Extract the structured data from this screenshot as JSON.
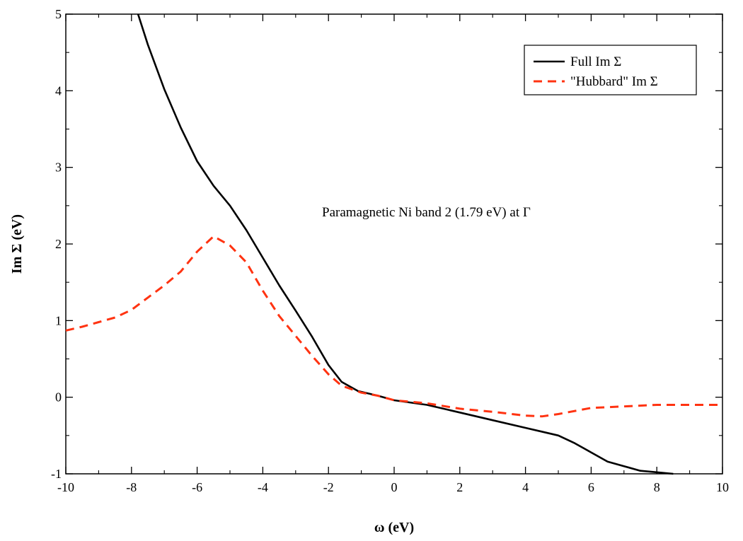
{
  "chart_data": {
    "type": "line",
    "title": "",
    "xlabel": "ω (eV)",
    "ylabel": "Im Σ (eV)",
    "xlim": [
      -10,
      10
    ],
    "ylim": [
      -1,
      5
    ],
    "xticks": [
      -10,
      -8,
      -6,
      -4,
      -2,
      0,
      2,
      4,
      6,
      8,
      10
    ],
    "yticks": [
      -1,
      0,
      1,
      2,
      3,
      4,
      5
    ],
    "grid": false,
    "legend_position": "top-right",
    "annotation": "Paramagnetic Ni band 2 (1.79 eV) at Γ",
    "series": [
      {
        "name": "Full Im Σ",
        "color": "#000000",
        "style": "solid",
        "x": [
          -7.8,
          -7.5,
          -7.0,
          -6.5,
          -6.0,
          -5.5,
          -5.0,
          -4.5,
          -4.0,
          -3.5,
          -3.0,
          -2.5,
          -2.0,
          -1.6,
          -1.1,
          -0.5,
          0.0,
          1.0,
          2.0,
          3.0,
          4.0,
          5.0,
          5.5,
          6.0,
          6.5,
          7.0,
          7.5,
          8.0,
          8.5
        ],
        "y": [
          5.0,
          4.6,
          4.02,
          3.52,
          3.08,
          2.76,
          2.5,
          2.18,
          1.82,
          1.46,
          1.13,
          0.79,
          0.42,
          0.2,
          0.08,
          0.02,
          -0.04,
          -0.1,
          -0.2,
          -0.3,
          -0.4,
          -0.5,
          -0.6,
          -0.72,
          -0.84,
          -0.9,
          -0.96,
          -0.98,
          -1.0
        ]
      },
      {
        "name": "\"Hubbard\" Im Σ",
        "color": "#ff3311",
        "style": "dashed",
        "x": [
          -10.0,
          -9.5,
          -9.0,
          -8.5,
          -8.0,
          -7.5,
          -7.0,
          -6.5,
          -6.0,
          -5.5,
          -5.0,
          -4.5,
          -4.0,
          -3.5,
          -3.0,
          -2.5,
          -2.0,
          -1.6,
          -1.0,
          -0.5,
          0.0,
          1.0,
          2.0,
          3.0,
          4.0,
          4.5,
          5.0,
          6.0,
          7.0,
          8.0,
          9.0,
          10.0
        ],
        "y": [
          0.87,
          0.92,
          0.98,
          1.04,
          1.14,
          1.3,
          1.46,
          1.64,
          1.9,
          2.1,
          1.98,
          1.76,
          1.39,
          1.06,
          0.8,
          0.54,
          0.3,
          0.15,
          0.06,
          0.02,
          -0.04,
          -0.08,
          -0.15,
          -0.19,
          -0.24,
          -0.25,
          -0.22,
          -0.14,
          -0.12,
          -0.1,
          -0.1,
          -0.1
        ]
      }
    ]
  }
}
